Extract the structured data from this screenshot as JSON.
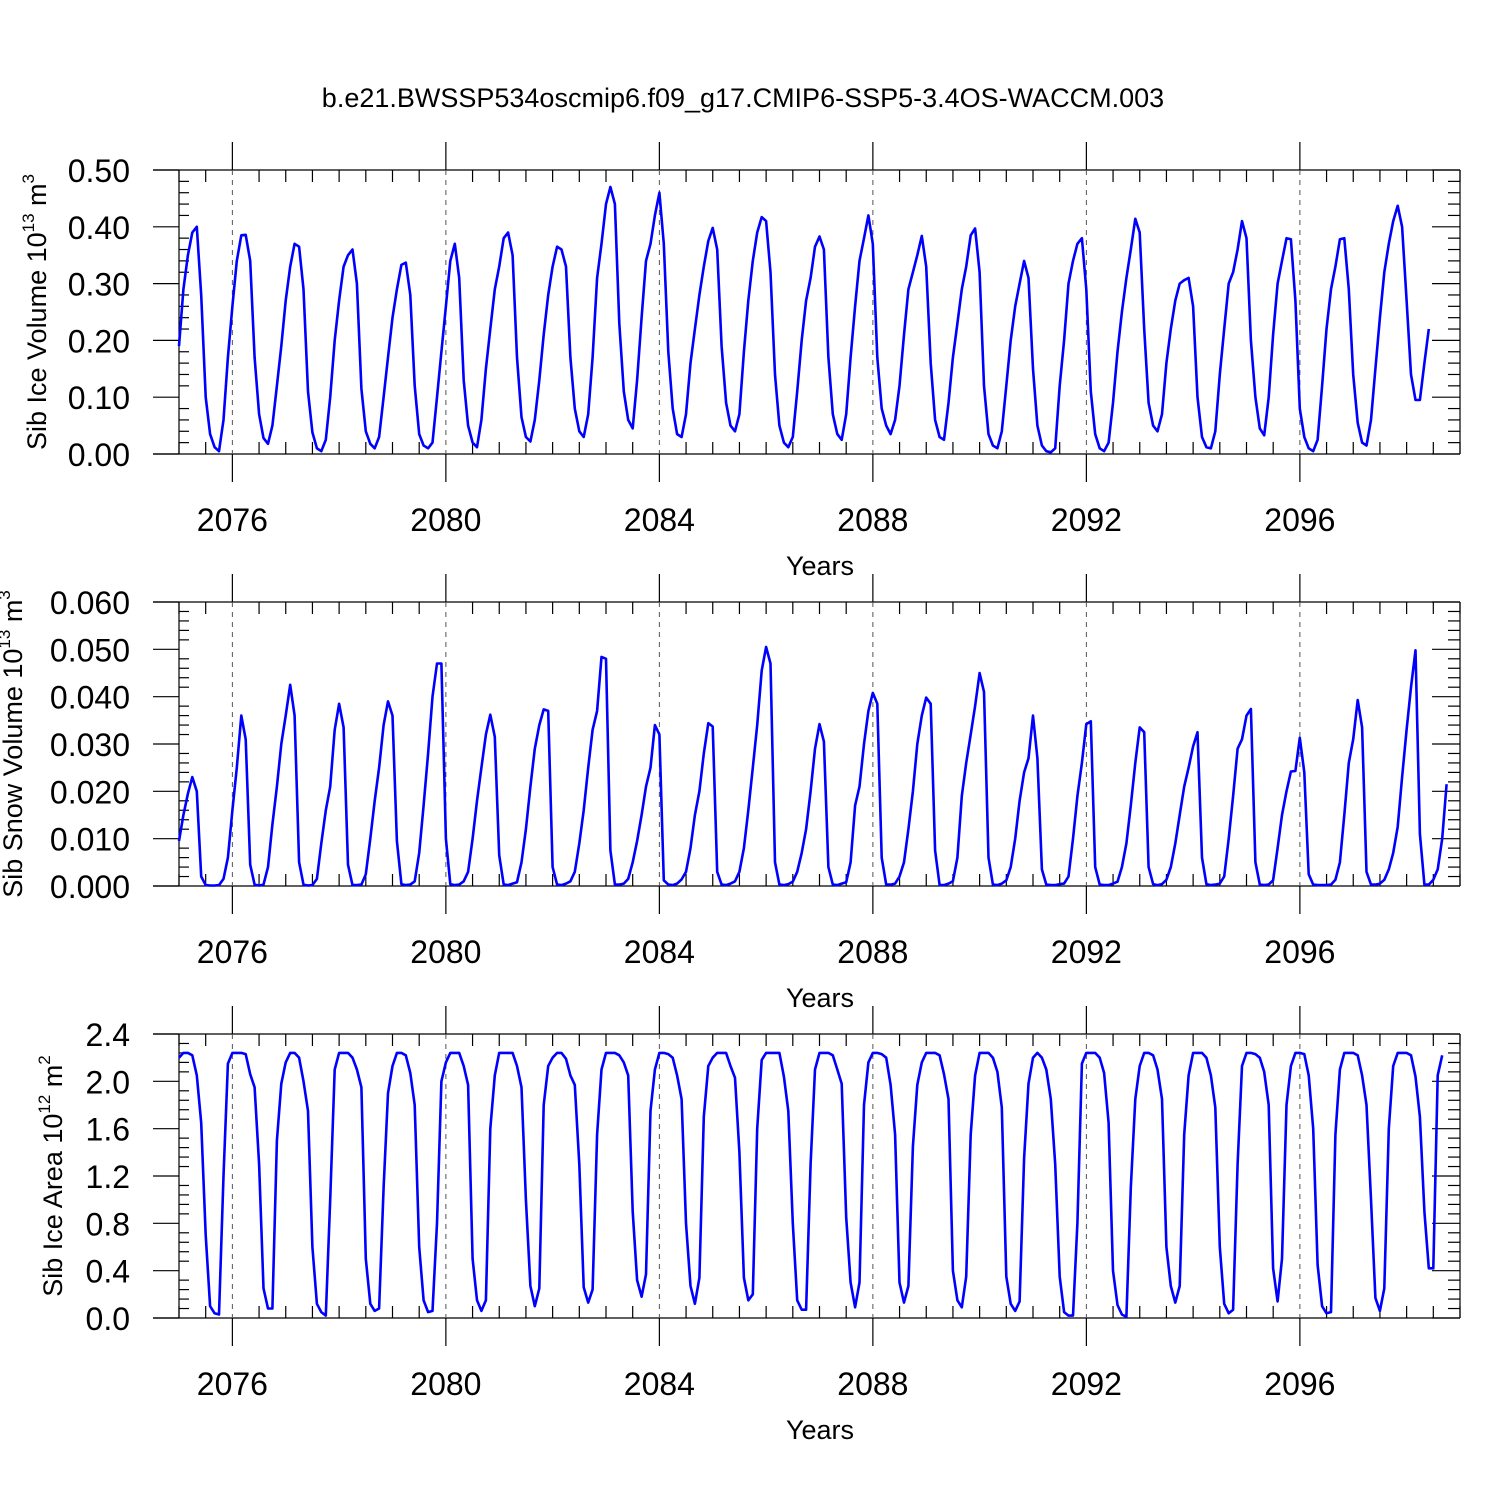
{
  "figure_title": "b.e21.BWSSP534oscmip6.f09_g17.CMIP6-SSP5-3.4OS-WACCM.003",
  "chart_data": [
    {
      "type": "line",
      "title": "b.e21.BWSSP534oscmip6.f09_g17.CMIP6-SSP5-3.4OS-WACCM.003",
      "xlabel": "Years",
      "ylabel": {
        "text": "Sib Ice Volume 10",
        "sup": "13",
        "unit": " m",
        "unit_sup": "3"
      },
      "xlim": [
        2075.0,
        2099.0
      ],
      "ylim": [
        0.0,
        0.5
      ],
      "xticks": [
        2076,
        2080,
        2084,
        2088,
        2092,
        2096
      ],
      "xtick_labels": [
        "2076",
        "2080",
        "2084",
        "2088",
        "2092",
        "2096"
      ],
      "yticks": [
        0.0,
        0.1,
        0.2,
        0.3,
        0.4,
        0.5
      ],
      "ytick_labels": [
        "0.00",
        "0.10",
        "0.20",
        "0.30",
        "0.40",
        "0.50"
      ],
      "grid": "dashed vertical lines at labeled years",
      "series": [
        {
          "color": "#0000ff",
          "x_start": 2075.0,
          "x_step": 0.08333,
          "values": [
            0.19,
            0.29,
            0.35,
            0.39,
            0.4,
            0.28,
            0.1,
            0.035,
            0.012,
            0.005,
            0.06,
            0.17,
            0.26,
            0.34,
            0.385,
            0.386,
            0.34,
            0.17,
            0.07,
            0.028,
            0.018,
            0.05,
            0.12,
            0.19,
            0.27,
            0.33,
            0.37,
            0.365,
            0.29,
            0.11,
            0.038,
            0.01,
            0.005,
            0.025,
            0.1,
            0.2,
            0.27,
            0.33,
            0.35,
            0.36,
            0.3,
            0.115,
            0.04,
            0.018,
            0.01,
            0.03,
            0.1,
            0.17,
            0.24,
            0.29,
            0.333,
            0.337,
            0.28,
            0.12,
            0.035,
            0.015,
            0.01,
            0.02,
            0.1,
            0.18,
            0.26,
            0.34,
            0.37,
            0.31,
            0.13,
            0.05,
            0.02,
            0.012,
            0.06,
            0.15,
            0.22,
            0.29,
            0.33,
            0.38,
            0.39,
            0.35,
            0.17,
            0.065,
            0.03,
            0.022,
            0.06,
            0.13,
            0.21,
            0.28,
            0.33,
            0.365,
            0.36,
            0.33,
            0.17,
            0.08,
            0.04,
            0.03,
            0.07,
            0.17,
            0.31,
            0.37,
            0.44,
            0.47,
            0.44,
            0.23,
            0.11,
            0.06,
            0.045,
            0.13,
            0.24,
            0.34,
            0.37,
            0.42,
            0.46,
            0.37,
            0.18,
            0.08,
            0.035,
            0.03,
            0.07,
            0.16,
            0.22,
            0.28,
            0.33,
            0.375,
            0.398,
            0.36,
            0.19,
            0.09,
            0.05,
            0.04,
            0.07,
            0.18,
            0.27,
            0.34,
            0.39,
            0.417,
            0.41,
            0.32,
            0.14,
            0.05,
            0.02,
            0.012,
            0.03,
            0.11,
            0.2,
            0.27,
            0.31,
            0.365,
            0.383,
            0.36,
            0.17,
            0.07,
            0.035,
            0.025,
            0.07,
            0.17,
            0.26,
            0.34,
            0.38,
            0.42,
            0.37,
            0.17,
            0.08,
            0.05,
            0.035,
            0.06,
            0.12,
            0.21,
            0.29,
            0.32,
            0.35,
            0.384,
            0.33,
            0.16,
            0.06,
            0.03,
            0.025,
            0.09,
            0.17,
            0.23,
            0.29,
            0.33,
            0.385,
            0.397,
            0.32,
            0.12,
            0.035,
            0.015,
            0.01,
            0.04,
            0.12,
            0.2,
            0.26,
            0.3,
            0.34,
            0.31,
            0.15,
            0.05,
            0.015,
            0.005,
            0.003,
            0.01,
            0.12,
            0.2,
            0.3,
            0.34,
            0.37,
            0.38,
            0.29,
            0.11,
            0.035,
            0.01,
            0.005,
            0.02,
            0.09,
            0.18,
            0.25,
            0.31,
            0.36,
            0.414,
            0.39,
            0.22,
            0.09,
            0.05,
            0.04,
            0.07,
            0.16,
            0.22,
            0.27,
            0.3,
            0.306,
            0.31,
            0.26,
            0.1,
            0.03,
            0.012,
            0.01,
            0.04,
            0.14,
            0.22,
            0.3,
            0.32,
            0.36,
            0.41,
            0.38,
            0.2,
            0.1,
            0.045,
            0.033,
            0.1,
            0.21,
            0.3,
            0.34,
            0.38,
            0.378,
            0.27,
            0.08,
            0.03,
            0.01,
            0.005,
            0.025,
            0.12,
            0.22,
            0.29,
            0.33,
            0.378,
            0.38,
            0.29,
            0.14,
            0.055,
            0.02,
            0.015,
            0.06,
            0.15,
            0.24,
            0.32,
            0.37,
            0.41,
            0.437,
            0.4,
            0.27,
            0.14,
            0.095,
            0.095,
            0.16,
            0.22
          ]
        }
      ]
    },
    {
      "type": "line",
      "xlabel": "Years",
      "ylabel": {
        "text": "Sib Snow Volume 10",
        "sup": "13",
        "unit": " m",
        "unit_sup": "3"
      },
      "xlim": [
        2075.0,
        2099.0
      ],
      "ylim": [
        0.0,
        0.06
      ],
      "xticks": [
        2076,
        2080,
        2084,
        2088,
        2092,
        2096
      ],
      "xtick_labels": [
        "2076",
        "2080",
        "2084",
        "2088",
        "2092",
        "2096"
      ],
      "yticks": [
        0.0,
        0.01,
        0.02,
        0.03,
        0.04,
        0.05,
        0.06
      ],
      "ytick_labels": [
        "0.000",
        "0.010",
        "0.020",
        "0.030",
        "0.040",
        "0.050",
        "0.060"
      ],
      "grid": "dashed vertical lines at labeled years",
      "series": [
        {
          "color": "#0000ff",
          "x_start": 2075.0,
          "x_step": 0.08333,
          "values": [
            0.0095,
            0.015,
            0.0195,
            0.023,
            0.02,
            0.002,
            0.0002,
            0.0001,
            0.0001,
            0.0002,
            0.0015,
            0.006,
            0.016,
            0.025,
            0.036,
            0.031,
            0.0045,
            0.0003,
            0.0001,
            0.0003,
            0.004,
            0.013,
            0.021,
            0.03,
            0.036,
            0.0425,
            0.036,
            0.005,
            0.0003,
            0.0001,
            0.0002,
            0.0015,
            0.009,
            0.016,
            0.021,
            0.033,
            0.0385,
            0.0335,
            0.0045,
            0.0002,
            0.0002,
            0.0003,
            0.0025,
            0.01,
            0.018,
            0.025,
            0.034,
            0.039,
            0.036,
            0.0095,
            0.0004,
            0.0002,
            0.0003,
            0.001,
            0.007,
            0.017,
            0.028,
            0.04,
            0.047,
            0.047,
            0.01,
            0.0004,
            0.0002,
            0.0003,
            0.001,
            0.003,
            0.01,
            0.018,
            0.025,
            0.032,
            0.0362,
            0.0315,
            0.0065,
            0.0003,
            0.0002,
            0.0005,
            0.0008,
            0.005,
            0.012,
            0.021,
            0.029,
            0.034,
            0.0373,
            0.037,
            0.004,
            0.0003,
            0.0002,
            0.0005,
            0.001,
            0.003,
            0.009,
            0.016,
            0.025,
            0.033,
            0.037,
            0.0484,
            0.048,
            0.0075,
            0.0003,
            0.0003,
            0.0005,
            0.0015,
            0.005,
            0.0095,
            0.015,
            0.021,
            0.025,
            0.034,
            0.032,
            0.0012,
            0.0003,
            0.0002,
            0.0005,
            0.0014,
            0.003,
            0.008,
            0.015,
            0.02,
            0.028,
            0.0344,
            0.0337,
            0.003,
            0.0003,
            0.0002,
            0.0005,
            0.001,
            0.003,
            0.008,
            0.016,
            0.025,
            0.034,
            0.0455,
            0.0505,
            0.047,
            0.005,
            0.0003,
            0.0002,
            0.0004,
            0.0009,
            0.003,
            0.007,
            0.012,
            0.02,
            0.029,
            0.0342,
            0.0305,
            0.004,
            0.0003,
            0.0002,
            0.0005,
            0.0008,
            0.005,
            0.017,
            0.021,
            0.03,
            0.037,
            0.0408,
            0.0385,
            0.006,
            0.0003,
            0.0003,
            0.0005,
            0.002,
            0.005,
            0.012,
            0.02,
            0.03,
            0.036,
            0.0398,
            0.0385,
            0.0075,
            0.0002,
            0.0002,
            0.0005,
            0.001,
            0.006,
            0.019,
            0.026,
            0.032,
            0.038,
            0.045,
            0.041,
            0.006,
            0.0003,
            0.0002,
            0.0005,
            0.0012,
            0.004,
            0.01,
            0.018,
            0.024,
            0.027,
            0.036,
            0.027,
            0.0035,
            0.0003,
            0.0002,
            0.0002,
            0.0004,
            0.0005,
            0.002,
            0.01,
            0.019,
            0.026,
            0.0342,
            0.0348,
            0.004,
            0.0003,
            0.0002,
            0.0002,
            0.0005,
            0.0009,
            0.004,
            0.009,
            0.017,
            0.026,
            0.0335,
            0.0325,
            0.004,
            0.0004,
            0.0002,
            0.0004,
            0.0013,
            0.004,
            0.009,
            0.015,
            0.021,
            0.025,
            0.0295,
            0.0325,
            0.006,
            0.0004,
            0.0002,
            0.0003,
            0.0005,
            0.002,
            0.01,
            0.019,
            0.029,
            0.031,
            0.036,
            0.0374,
            0.005,
            0.0003,
            0.0002,
            0.0003,
            0.0012,
            0.008,
            0.015,
            0.02,
            0.0242,
            0.0243,
            0.0313,
            0.024,
            0.0025,
            0.0003,
            0.0002,
            0.0002,
            0.0002,
            0.0003,
            0.0013,
            0.005,
            0.015,
            0.026,
            0.031,
            0.0393,
            0.0335,
            0.003,
            0.0003,
            0.0003,
            0.0005,
            0.0013,
            0.0035,
            0.007,
            0.0125,
            0.023,
            0.033,
            0.042,
            0.0498,
            0.011,
            0.0003,
            0.0003,
            0.0013,
            0.0035,
            0.01,
            0.0215
          ]
        }
      ]
    },
    {
      "type": "line",
      "xlabel": "Years",
      "ylabel": {
        "text": "Sib Ice Area 10",
        "sup": "12",
        "unit": " m",
        "unit_sup": "2"
      },
      "xlim": [
        2075.0,
        2099.0
      ],
      "ylim": [
        0.0,
        2.4
      ],
      "xticks": [
        2076,
        2080,
        2084,
        2088,
        2092,
        2096
      ],
      "xtick_labels": [
        "2076",
        "2080",
        "2084",
        "2088",
        "2092",
        "2096"
      ],
      "yticks": [
        0.0,
        0.4,
        0.8,
        1.2,
        1.6,
        2.0,
        2.4
      ],
      "ytick_labels": [
        "0.0",
        "0.4",
        "0.8",
        "1.2",
        "1.6",
        "2.0",
        "2.4"
      ],
      "grid": "dashed vertical lines at labeled years",
      "series": [
        {
          "color": "#0000ff",
          "x_start": 2075.0,
          "x_step": 0.08333,
          "values": [
            2.2,
            2.24,
            2.24,
            2.22,
            2.05,
            1.65,
            0.7,
            0.1,
            0.04,
            0.03,
            1.2,
            2.15,
            2.24,
            2.24,
            2.24,
            2.23,
            2.06,
            1.95,
            1.3,
            0.25,
            0.08,
            0.08,
            1.5,
            1.98,
            2.16,
            2.24,
            2.24,
            2.2,
            2.0,
            1.75,
            0.6,
            0.12,
            0.05,
            0.02,
            1.0,
            2.1,
            2.24,
            2.24,
            2.24,
            2.2,
            2.1,
            1.95,
            0.5,
            0.12,
            0.06,
            0.08,
            1.1,
            1.9,
            2.13,
            2.24,
            2.24,
            2.22,
            2.07,
            1.8,
            0.6,
            0.15,
            0.05,
            0.06,
            0.8,
            2.0,
            2.16,
            2.24,
            2.24,
            2.24,
            2.13,
            1.97,
            0.5,
            0.15,
            0.06,
            0.15,
            1.6,
            2.05,
            2.24,
            2.24,
            2.24,
            2.24,
            2.13,
            1.95,
            1.0,
            0.27,
            0.1,
            0.25,
            1.8,
            2.13,
            2.2,
            2.24,
            2.24,
            2.19,
            2.05,
            1.97,
            1.3,
            0.26,
            0.13,
            0.24,
            1.55,
            2.1,
            2.24,
            2.24,
            2.24,
            2.22,
            2.16,
            2.05,
            0.9,
            0.32,
            0.18,
            0.37,
            1.75,
            2.1,
            2.24,
            2.24,
            2.23,
            2.2,
            2.05,
            1.85,
            0.8,
            0.27,
            0.12,
            0.34,
            1.7,
            2.13,
            2.2,
            2.24,
            2.24,
            2.24,
            2.13,
            2.03,
            1.4,
            0.34,
            0.15,
            0.2,
            1.6,
            2.18,
            2.24,
            2.24,
            2.24,
            2.24,
            2.04,
            1.75,
            0.8,
            0.15,
            0.07,
            0.07,
            1.3,
            2.1,
            2.24,
            2.24,
            2.24,
            2.22,
            2.1,
            1.98,
            0.85,
            0.3,
            0.09,
            0.3,
            1.8,
            2.16,
            2.24,
            2.24,
            2.23,
            2.2,
            1.97,
            1.55,
            0.3,
            0.13,
            0.27,
            1.45,
            1.97,
            2.16,
            2.24,
            2.24,
            2.24,
            2.22,
            2.06,
            1.85,
            0.4,
            0.15,
            0.09,
            0.35,
            1.55,
            2.05,
            2.24,
            2.24,
            2.24,
            2.2,
            2.08,
            1.78,
            0.35,
            0.12,
            0.06,
            0.14,
            1.35,
            1.98,
            2.2,
            2.24,
            2.2,
            2.1,
            1.85,
            1.3,
            0.35,
            0.05,
            0.02,
            0.02,
            0.8,
            2.15,
            2.24,
            2.24,
            2.24,
            2.2,
            2.07,
            1.65,
            0.4,
            0.11,
            0.03,
            0.01,
            1.1,
            1.85,
            2.13,
            2.24,
            2.24,
            2.22,
            2.1,
            1.85,
            0.6,
            0.27,
            0.13,
            0.27,
            1.55,
            2.05,
            2.24,
            2.24,
            2.24,
            2.2,
            2.05,
            1.78,
            0.6,
            0.12,
            0.04,
            0.07,
            1.3,
            2.13,
            2.24,
            2.24,
            2.23,
            2.2,
            2.08,
            1.8,
            0.42,
            0.14,
            0.5,
            1.8,
            2.13,
            2.24,
            2.24,
            2.23,
            2.05,
            1.6,
            0.45,
            0.1,
            0.04,
            0.05,
            1.55,
            2.1,
            2.24,
            2.24,
            2.24,
            2.22,
            2.05,
            1.8,
            1.0,
            0.17,
            0.06,
            0.25,
            1.6,
            2.13,
            2.24,
            2.24,
            2.24,
            2.22,
            2.04,
            1.7,
            0.9,
            0.42,
            0.42,
            2.05,
            2.22
          ]
        }
      ]
    }
  ]
}
